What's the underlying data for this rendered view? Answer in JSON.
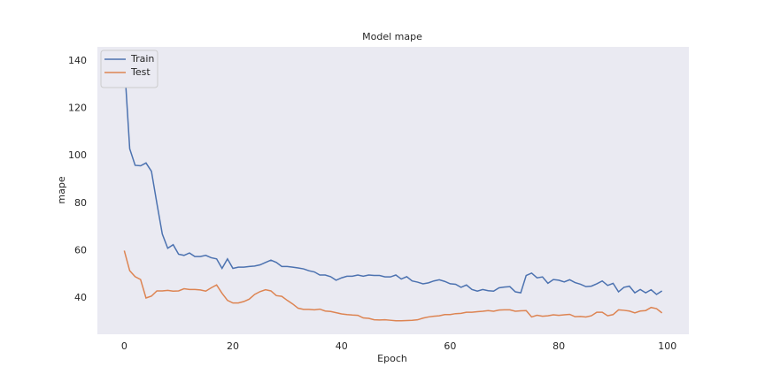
{
  "chart_data": {
    "type": "line",
    "title": "Model mape",
    "xlabel": "Epoch",
    "ylabel": "mape",
    "x": [
      0,
      1,
      2,
      3,
      4,
      5,
      6,
      7,
      8,
      9,
      10,
      11,
      12,
      13,
      14,
      15,
      16,
      17,
      18,
      19,
      20,
      21,
      22,
      23,
      24,
      25,
      26,
      27,
      28,
      29,
      30,
      31,
      32,
      33,
      34,
      35,
      36,
      37,
      38,
      39,
      40,
      41,
      42,
      43,
      44,
      45,
      46,
      47,
      48,
      49,
      50,
      51,
      52,
      53,
      54,
      55,
      56,
      57,
      58,
      59,
      60,
      61,
      62,
      63,
      64,
      65,
      66,
      67,
      68,
      69,
      70,
      71,
      72,
      73,
      74,
      75,
      76,
      77,
      78,
      79,
      80,
      81,
      82,
      83,
      84,
      85,
      86,
      87,
      88,
      89,
      90,
      91,
      92,
      93,
      94,
      95,
      96,
      97,
      98,
      99
    ],
    "series": [
      {
        "name": "Train",
        "color": "#4c72b0",
        "values": [
          140,
          103,
          96,
          95.8,
          97,
          93.5,
          80,
          67,
          61,
          62.5,
          58.5,
          58,
          59,
          57.5,
          57.5,
          58,
          57,
          56.5,
          52.5,
          56.5,
          52.5,
          53,
          53,
          53.3,
          53.5,
          54,
          55,
          56,
          55,
          53.3,
          53.3,
          53,
          52.7,
          52.3,
          51.5,
          51,
          49.7,
          49.7,
          49,
          47.5,
          48.5,
          49.2,
          49.2,
          49.7,
          49.2,
          49.7,
          49.5,
          49.5,
          48.9,
          48.9,
          49.7,
          48,
          49,
          47.2,
          46.7,
          46,
          46.4,
          47.2,
          47.7,
          47,
          46,
          45.8,
          44.5,
          45.5,
          43.6,
          42.9,
          43.6,
          43.1,
          42.9,
          44.3,
          44.6,
          44.8,
          42.6,
          42.2,
          49.5,
          50.5,
          48.5,
          48.9,
          46.2,
          47.8,
          47.5,
          46.8,
          47.7,
          46.5,
          45.8,
          44.8,
          45,
          46,
          47.2,
          45.3,
          46.2,
          42.6,
          44.5,
          45,
          42.2,
          43.6,
          42.2,
          43.5,
          41.5,
          43
        ]
      },
      {
        "name": "Test",
        "color": "#dd8452",
        "values": [
          60,
          51.5,
          49,
          47.8,
          40,
          40.8,
          43,
          43,
          43.2,
          42.9,
          43,
          43.9,
          43.6,
          43.6,
          43.4,
          42.9,
          44.3,
          45.5,
          42,
          39,
          37.9,
          37.9,
          38.5,
          39.5,
          41.5,
          42.7,
          43.5,
          43,
          41,
          40.7,
          39,
          37.5,
          35.7,
          35.2,
          35.2,
          35,
          35.3,
          34.5,
          34.3,
          33.8,
          33.3,
          33,
          32.8,
          32.7,
          31.6,
          31.4,
          30.8,
          30.7,
          30.8,
          30.6,
          30.4,
          30.4,
          30.5,
          30.6,
          30.8,
          31.5,
          32,
          32.3,
          32.5,
          33,
          33,
          33.4,
          33.5,
          34,
          34,
          34.2,
          34.4,
          34.7,
          34.4,
          34.9,
          35,
          35,
          34.4,
          34.6,
          34.7,
          32,
          32.7,
          32.3,
          32.5,
          32.9,
          32.7,
          32.9,
          33.1,
          32.1,
          32.2,
          32,
          32.5,
          34,
          34,
          32.5,
          33,
          35,
          34.8,
          34.5,
          33.7,
          34.5,
          34.7,
          36,
          35.5,
          33.7
        ]
      }
    ],
    "xlim": [
      -4.95,
      103.95
    ],
    "ylim": [
      24.7,
      146
    ],
    "xticks": [
      0,
      20,
      40,
      60,
      80,
      100
    ],
    "yticks": [
      40,
      60,
      80,
      100,
      120,
      140
    ],
    "grid": false,
    "legend": "upper left",
    "background": "#eaeaf2"
  }
}
